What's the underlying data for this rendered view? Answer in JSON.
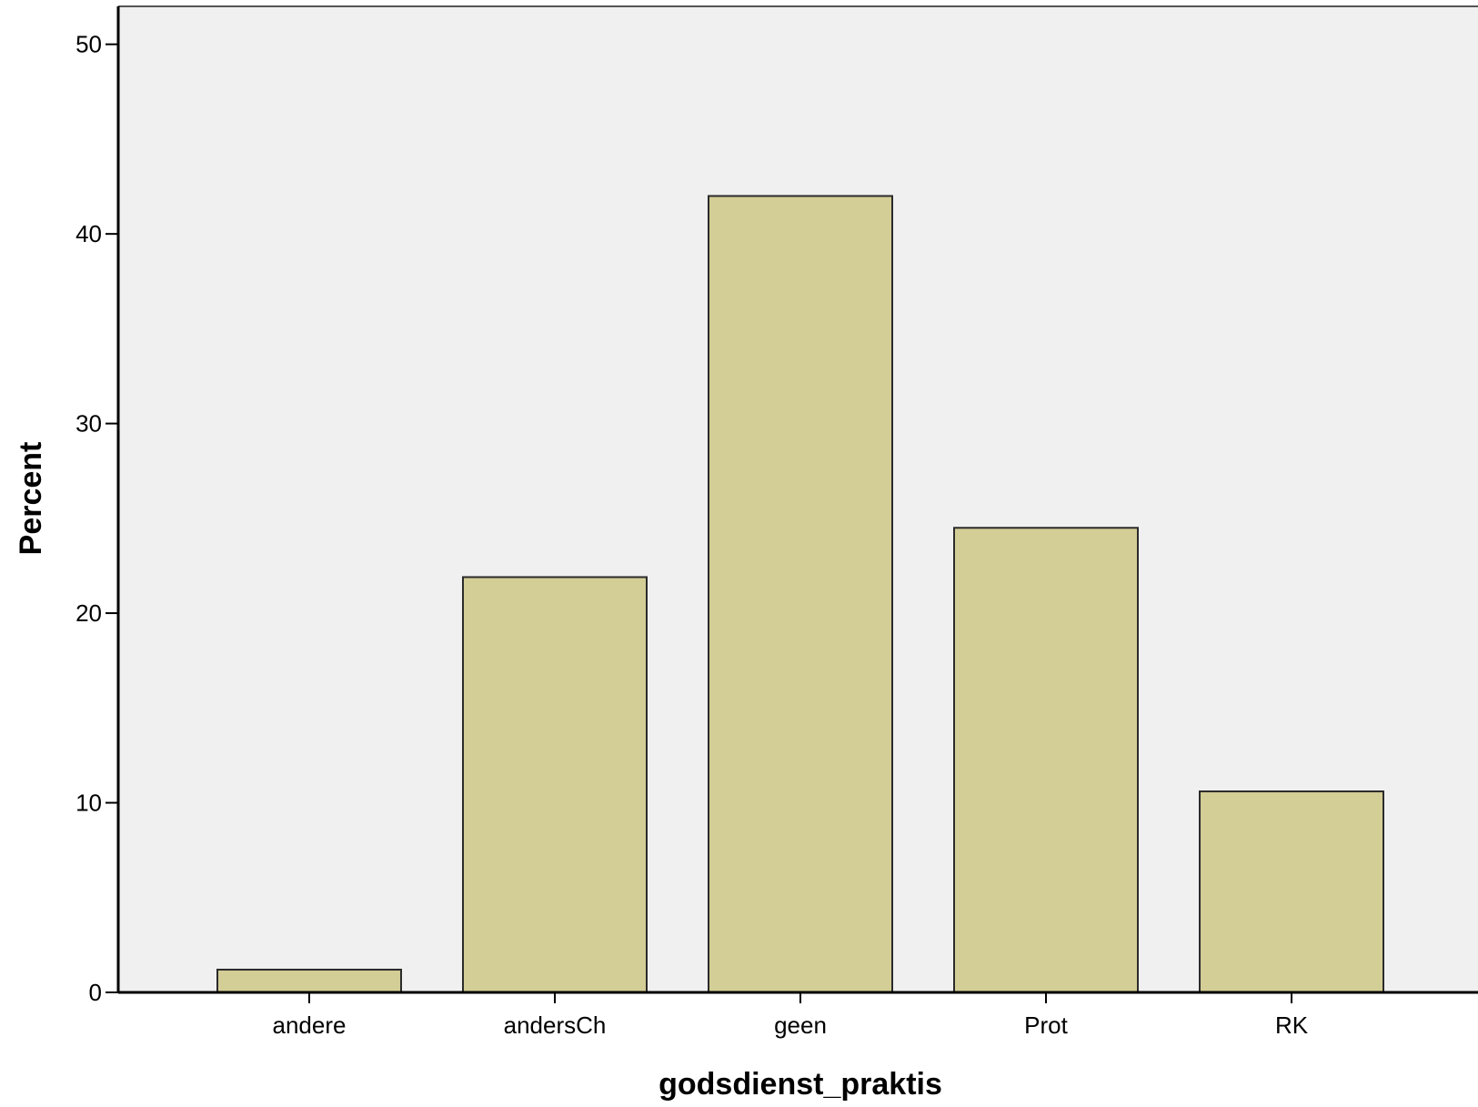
{
  "colors": {
    "plot_background": "#f0f0f0",
    "bar_fill": "#d3cd96",
    "bar_stroke": "#2b2b2b",
    "axis": "#000000"
  },
  "chart_data": {
    "type": "bar",
    "title": "",
    "xlabel": "godsdienst_praktis",
    "ylabel": "Percent",
    "categories": [
      "andere",
      "andersCh",
      "geen",
      "Prot",
      "RK"
    ],
    "values": [
      1.2,
      21.9,
      42.0,
      24.5,
      10.6
    ],
    "ylim": [
      0,
      52
    ],
    "yticks": [
      0,
      10,
      20,
      30,
      40,
      50
    ],
    "ytick_labels": [
      "0",
      "10",
      "20",
      "30",
      "40",
      "50"
    ],
    "grid": false,
    "legend": "none"
  }
}
